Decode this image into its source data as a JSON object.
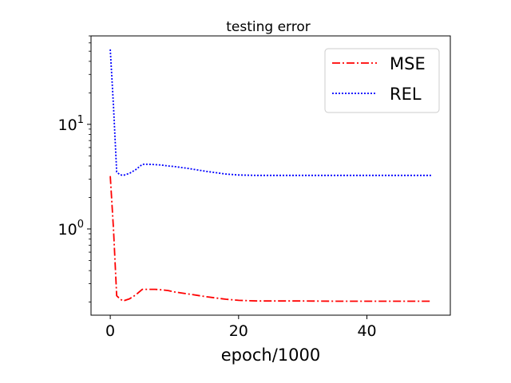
{
  "chart_data": {
    "type": "line",
    "title": "testing error",
    "xlabel": "epoch/1000",
    "ylabel": "",
    "xlim": [
      -3,
      53
    ],
    "ylim": [
      0.15,
      70
    ],
    "yscale": "log",
    "grid": false,
    "legend": "top-right",
    "x_ticks": [
      0,
      20,
      40
    ],
    "y_ticks": [
      {
        "value": 1,
        "label": "10",
        "exp": "0"
      },
      {
        "value": 10,
        "label": "10",
        "exp": "1"
      }
    ],
    "x": [
      0,
      0.5,
      1,
      1.5,
      2,
      3,
      4,
      5,
      6,
      7,
      8,
      9,
      10,
      12,
      15,
      18,
      20,
      23,
      25,
      30,
      35,
      40,
      45,
      50
    ],
    "series": [
      {
        "name": "MSE",
        "color": "#ff0000",
        "dash": "dashdot",
        "values": [
          3.2,
          1.0,
          0.23,
          0.215,
          0.205,
          0.215,
          0.235,
          0.265,
          0.265,
          0.265,
          0.262,
          0.258,
          0.25,
          0.24,
          0.225,
          0.213,
          0.208,
          0.205,
          0.205,
          0.205,
          0.204,
          0.204,
          0.204,
          0.204
        ]
      },
      {
        "name": "REL",
        "color": "#0000ff",
        "dash": "dotted",
        "values": [
          52,
          15,
          3.5,
          3.3,
          3.25,
          3.4,
          3.7,
          4.15,
          4.15,
          4.12,
          4.08,
          4.0,
          3.95,
          3.8,
          3.55,
          3.35,
          3.28,
          3.25,
          3.25,
          3.25,
          3.25,
          3.25,
          3.25,
          3.25
        ]
      }
    ]
  }
}
